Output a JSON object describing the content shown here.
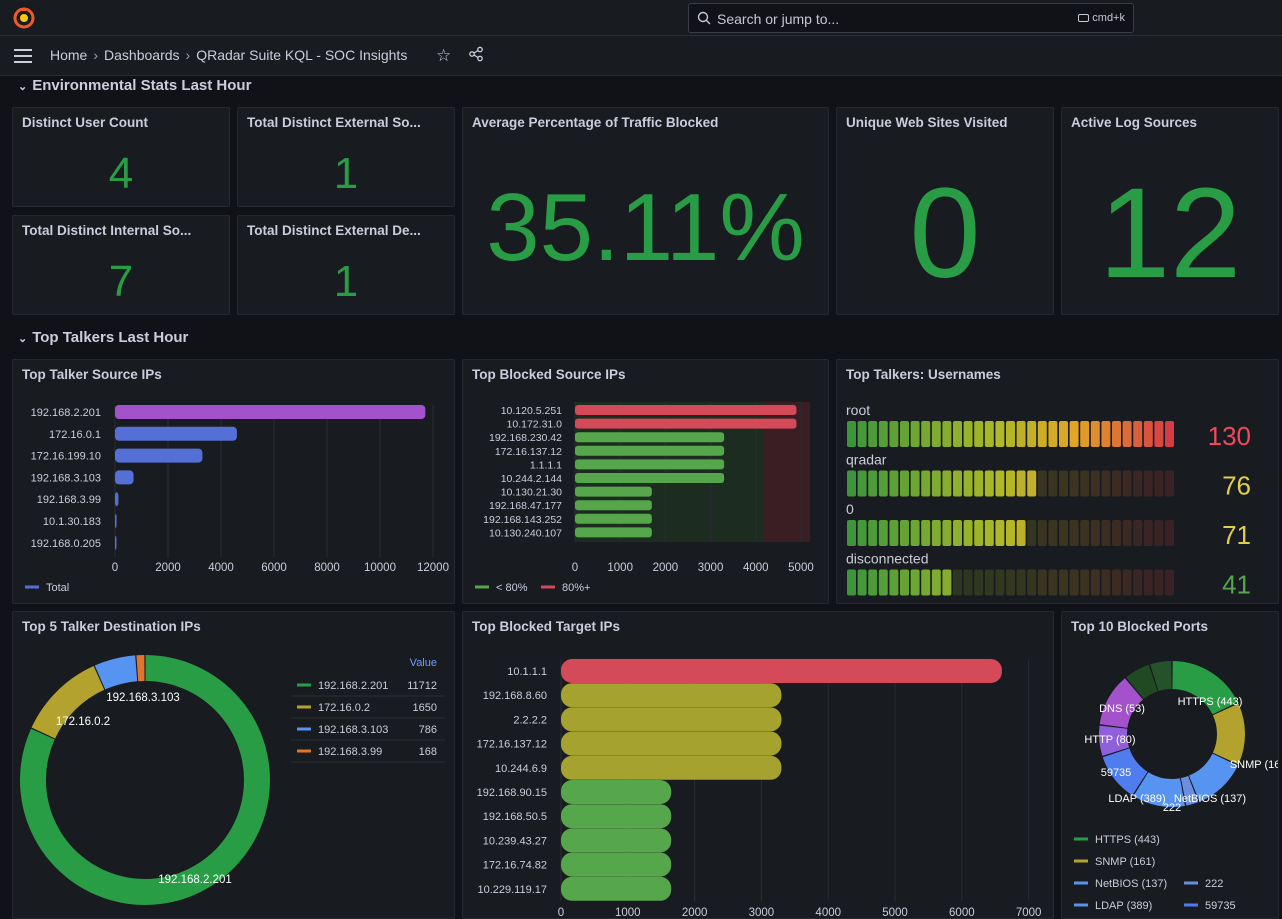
{
  "search": {
    "placeholder": "Search or jump to...",
    "shortcut": "cmd+k"
  },
  "breadcrumb": {
    "home": "Home",
    "dashboards": "Dashboards",
    "current": "QRadar Suite KQL - SOC Insights"
  },
  "rows": {
    "env": "Environmental Stats Last Hour",
    "talkers": "Top Talkers Last Hour"
  },
  "stats": {
    "distinct_user": {
      "title": "Distinct User Count",
      "value": "4"
    },
    "ext_source": {
      "title": "Total Distinct External So...",
      "value": "1"
    },
    "int_source": {
      "title": "Total Distinct Internal So...",
      "value": "7"
    },
    "ext_dest": {
      "title": "Total Distinct External De...",
      "value": "1"
    },
    "avg_blocked": {
      "title": "Average Percentage of Traffic Blocked",
      "value": "35.11%"
    },
    "unique_sites": {
      "title": "Unique Web Sites Visited",
      "value": "0"
    },
    "log_sources": {
      "title": "Active Log Sources",
      "value": "12"
    }
  },
  "colors": {
    "green": "#299c46",
    "red": "#d44a58",
    "purple": "#a352cc",
    "blue": "#5470d6",
    "olive": "#a5a22f",
    "lightgreen": "#56a64b",
    "orange": "#e0752d",
    "yellow": "#e0b400",
    "skyblue": "#5794f2"
  },
  "chart_data": [
    {
      "id": "top_talker_source",
      "type": "bar",
      "title": "Top Talker Source IPs",
      "categories": [
        "192.168.2.201",
        "172.16.0.1",
        "172.16.199.10",
        "192.168.3.103",
        "192.168.3.99",
        "10.1.30.183",
        "192.168.0.205"
      ],
      "series": [
        {
          "name": "Total",
          "values": [
            11712,
            4600,
            3300,
            700,
            130,
            60,
            20
          ]
        }
      ],
      "xlim": [
        0,
        12000
      ],
      "xticks": [
        0,
        2000,
        4000,
        6000,
        8000,
        10000,
        12000
      ]
    },
    {
      "id": "top_blocked_source",
      "type": "bar",
      "title": "Top Blocked Source IPs",
      "categories": [
        "10.120.5.251",
        "10.172.31.0",
        "192.168.230.42",
        "172.16.137.12",
        "1.1.1.1",
        "10.244.2.144",
        "10.130.21.30",
        "192.168.47.177",
        "192.168.143.252",
        "10.130.240.107"
      ],
      "values": [
        4900,
        4900,
        3300,
        3300,
        3300,
        3300,
        1700,
        1700,
        1700,
        1700
      ],
      "xlim": [
        0,
        5200
      ],
      "xticks": [
        0,
        1000,
        2000,
        3000,
        4000,
        5000
      ],
      "legend": [
        "< 80%",
        "80%+"
      ]
    },
    {
      "id": "top_talkers_usernames",
      "type": "bar",
      "title": "Top Talkers: Usernames",
      "categories": [
        "root",
        "qradar",
        "0",
        "disconnected"
      ],
      "values": [
        130,
        76,
        71,
        41
      ],
      "max": 130
    },
    {
      "id": "top5_dest",
      "type": "pie",
      "title": "Top 5 Talker Destination IPs",
      "legend_header": "Value",
      "categories": [
        "192.168.2.201",
        "172.16.0.2",
        "192.168.3.103",
        "192.168.3.99"
      ],
      "values": [
        11712,
        1650,
        786,
        168
      ]
    },
    {
      "id": "top_blocked_target",
      "type": "bar",
      "title": "Top Blocked Target IPs",
      "categories": [
        "10.1.1.1",
        "192.168.8.60",
        "2.2.2.2",
        "172.16.137.12",
        "10.244.6.9",
        "192.168.90.15",
        "192.168.50.5",
        "10.239.43.27",
        "172.16.74.82",
        "10.229.119.17"
      ],
      "values": [
        6600,
        3300,
        3300,
        3300,
        3300,
        1650,
        1650,
        1650,
        1650,
        1650
      ],
      "xlim": [
        0,
        7200
      ],
      "xticks": [
        0,
        1000,
        2000,
        3000,
        4000,
        5000,
        6000,
        7000
      ]
    },
    {
      "id": "top10_ports",
      "type": "pie",
      "title": "Top 10 Blocked Ports",
      "categories": [
        "HTTPS (443)",
        "SNMP (161)",
        "NetBIOS (137)",
        "222",
        "LDAP (389)",
        "59735",
        "HTTP (80)",
        "DNS (53)",
        "",
        ""
      ],
      "values": [
        18,
        14,
        12,
        3,
        12,
        11,
        7,
        12,
        6,
        5
      ],
      "legend": [
        "HTTPS (443)",
        "SNMP (161)",
        "NetBIOS (137)",
        "222",
        "LDAP (389)",
        "59735"
      ]
    }
  ]
}
